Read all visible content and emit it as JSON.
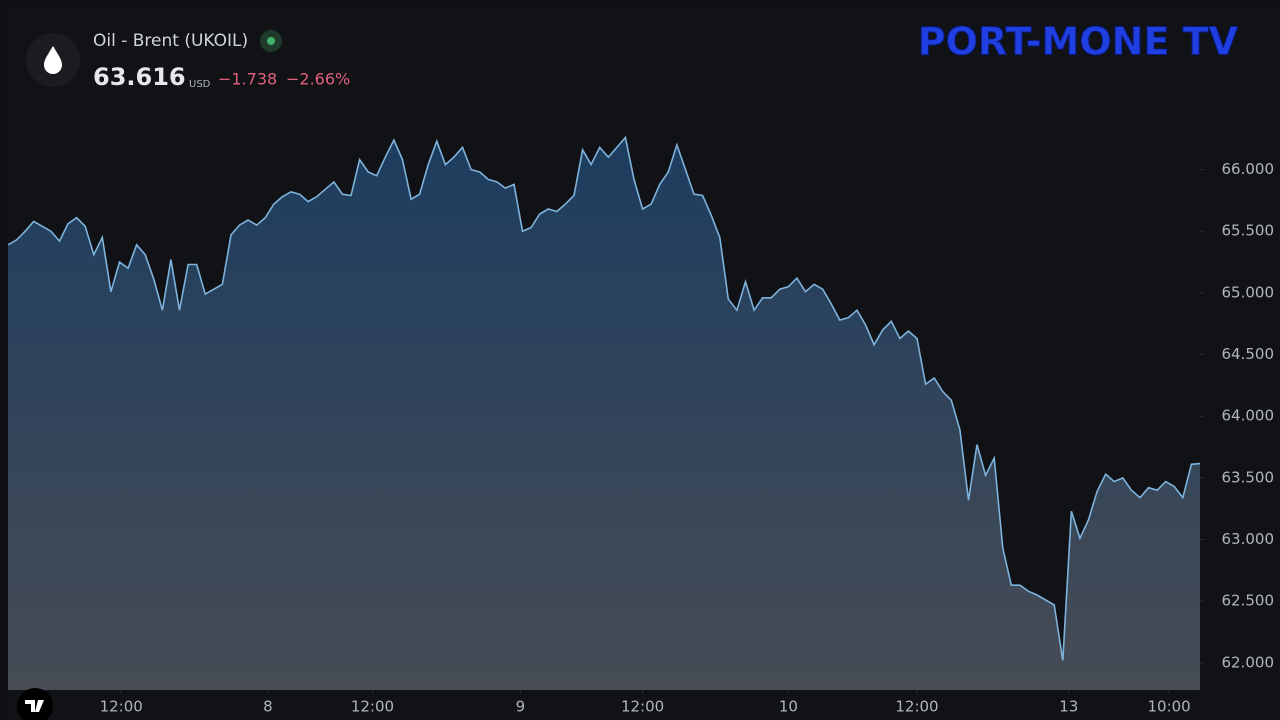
{
  "header": {
    "symbol": "Oil - Brent (UKOIL)",
    "price": "63.616",
    "currency": "USD",
    "change": "−1.738",
    "change_pct": "−2.66%"
  },
  "logo": "PORT-MONE TV",
  "chart_data": {
    "type": "area",
    "color": "#7eb3dd",
    "values": [
      65.39,
      65.43,
      65.5,
      65.58,
      65.54,
      65.5,
      65.42,
      65.56,
      65.61,
      65.54,
      65.31,
      65.45,
      65.01,
      65.25,
      65.2,
      65.39,
      65.31,
      65.11,
      64.86,
      65.27,
      64.86,
      65.23,
      65.23,
      64.99,
      65.03,
      65.07,
      65.47,
      65.55,
      65.59,
      65.55,
      65.61,
      65.72,
      65.78,
      65.82,
      65.8,
      65.74,
      65.78,
      65.84,
      65.9,
      65.8,
      65.79,
      66.08,
      65.98,
      65.95,
      66.1,
      66.24,
      66.08,
      65.76,
      65.8,
      66.04,
      66.23,
      66.04,
      66.1,
      66.18,
      66.0,
      65.98,
      65.92,
      65.9,
      65.85,
      65.88,
      65.5,
      65.53,
      65.64,
      65.68,
      65.66,
      65.72,
      65.79,
      66.16,
      66.04,
      66.18,
      66.1,
      66.18,
      66.26,
      65.92,
      65.68,
      65.72,
      65.88,
      65.98,
      66.2,
      66.0,
      65.8,
      65.79,
      65.63,
      65.45,
      64.95,
      64.86,
      65.09,
      64.86,
      64.96,
      64.96,
      65.03,
      65.05,
      65.12,
      65.01,
      65.07,
      65.03,
      64.91,
      64.78,
      64.8,
      64.86,
      64.74,
      64.58,
      64.7,
      64.77,
      64.63,
      64.69,
      64.63,
      64.26,
      64.31,
      64.2,
      64.13,
      63.89,
      63.32,
      63.77,
      63.52,
      63.66,
      62.93,
      62.63,
      62.63,
      62.58,
      62.55,
      62.51,
      62.47,
      62.02,
      63.23,
      63.01,
      63.16,
      63.39,
      63.53,
      63.47,
      63.5,
      63.4,
      63.34,
      63.42,
      63.4,
      63.47,
      63.43,
      63.34,
      63.61,
      63.616
    ],
    "xlim": [
      0,
      139
    ],
    "xticks": [
      {
        "value": 13.2,
        "label": "12:00"
      },
      {
        "value": 30.3,
        "label": "8"
      },
      {
        "value": 42.5,
        "label": "12:00"
      },
      {
        "value": 59.75,
        "label": "9"
      },
      {
        "value": 74,
        "label": "12:00"
      },
      {
        "value": 91,
        "label": "10"
      },
      {
        "value": 106,
        "label": "12:00"
      },
      {
        "value": 123.7,
        "label": "13"
      },
      {
        "value": 135.4,
        "label": "10:00"
      }
    ],
    "ylim": [
      61.78,
      67.31
    ],
    "yticks": [
      {
        "value": 62,
        "label": "62.000"
      },
      {
        "value": 62.5,
        "label": "62.500"
      },
      {
        "value": 63,
        "label": "63.000"
      },
      {
        "value": 63.5,
        "label": "63.500"
      },
      {
        "value": 64,
        "label": "64.000"
      },
      {
        "value": 64.5,
        "label": "64.500"
      },
      {
        "value": 65,
        "label": "65.000"
      },
      {
        "value": 65.5,
        "label": "65.500"
      },
      {
        "value": 66,
        "label": "66.000"
      }
    ]
  }
}
